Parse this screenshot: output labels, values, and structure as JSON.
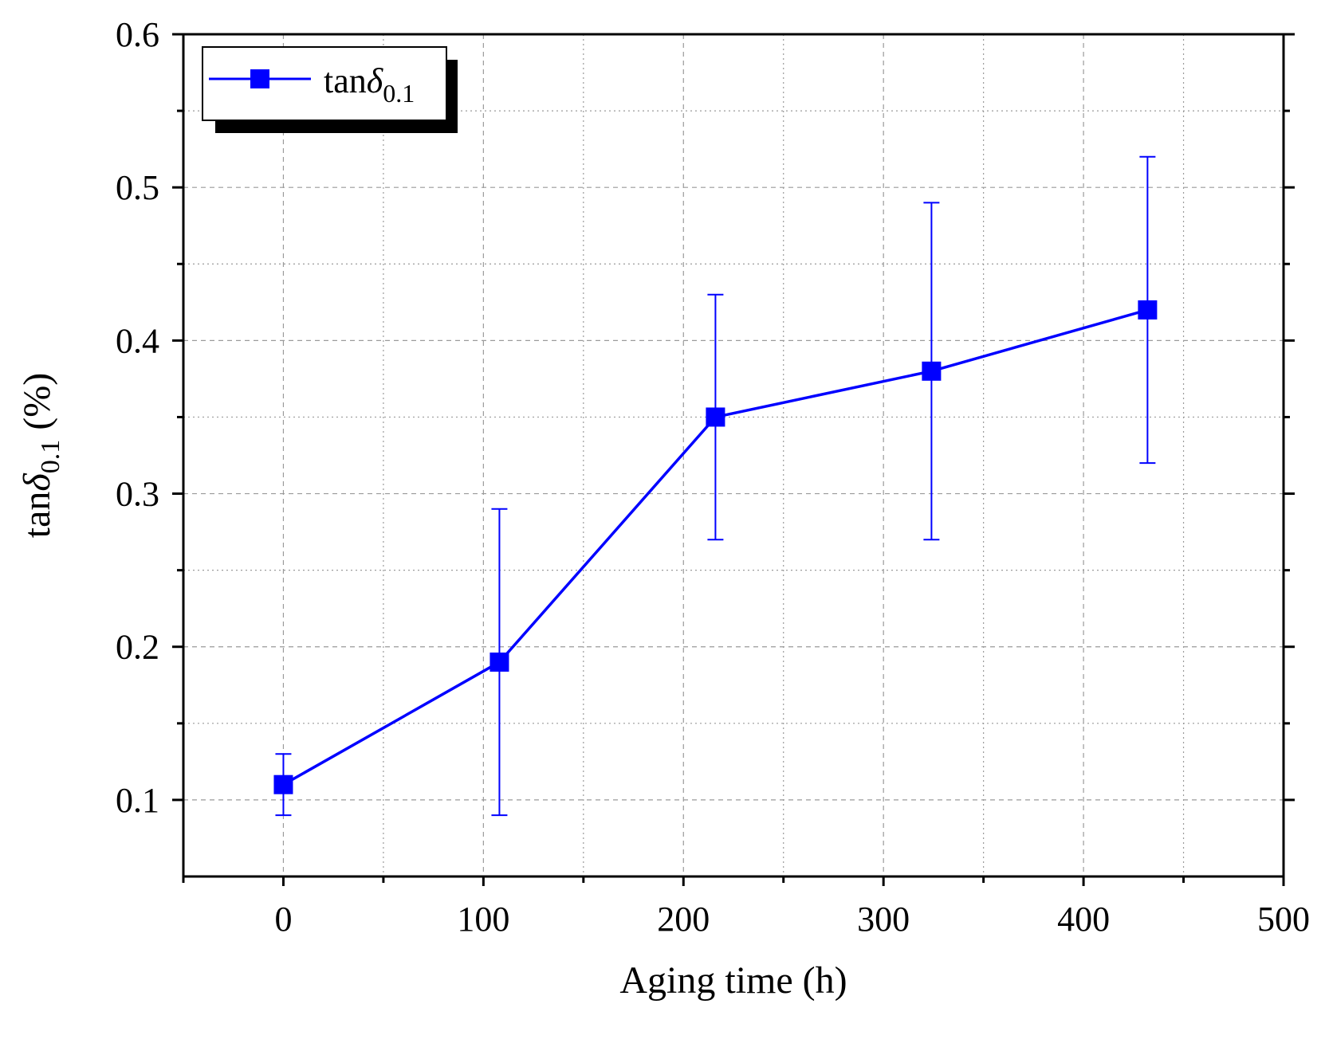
{
  "chart_data": {
    "type": "line",
    "xlabel": "Aging time (h)",
    "ylabel": {
      "prefix": "tan",
      "symbol": "δ",
      "subscript": "0.1",
      "suffix": " (%)"
    },
    "xlim": [
      -50,
      500
    ],
    "ylim": [
      0.05,
      0.6
    ],
    "xticks": [
      0,
      100,
      200,
      300,
      400,
      500
    ],
    "xtick_labels": [
      "0",
      "100",
      "200",
      "300",
      "400",
      "500"
    ],
    "yticks": [
      0.1,
      0.2,
      0.3,
      0.4,
      0.5,
      0.6
    ],
    "ytick_labels": [
      "0.1",
      "0.2",
      "0.3",
      "0.4",
      "0.5",
      "0.6"
    ],
    "grid": true,
    "legend_position": "top-left",
    "series": [
      {
        "name": "tanδ0.1",
        "legend": {
          "prefix": "tan",
          "symbol": "δ",
          "subscript": "0.1"
        },
        "color": "#0000ff",
        "marker": "square",
        "x": [
          0,
          108,
          216,
          324,
          432
        ],
        "y": [
          0.11,
          0.19,
          0.35,
          0.38,
          0.42
        ],
        "err_low": [
          0.09,
          0.09,
          0.27,
          0.27,
          0.32
        ],
        "err_high": [
          0.13,
          0.29,
          0.43,
          0.49,
          0.52
        ]
      }
    ]
  }
}
